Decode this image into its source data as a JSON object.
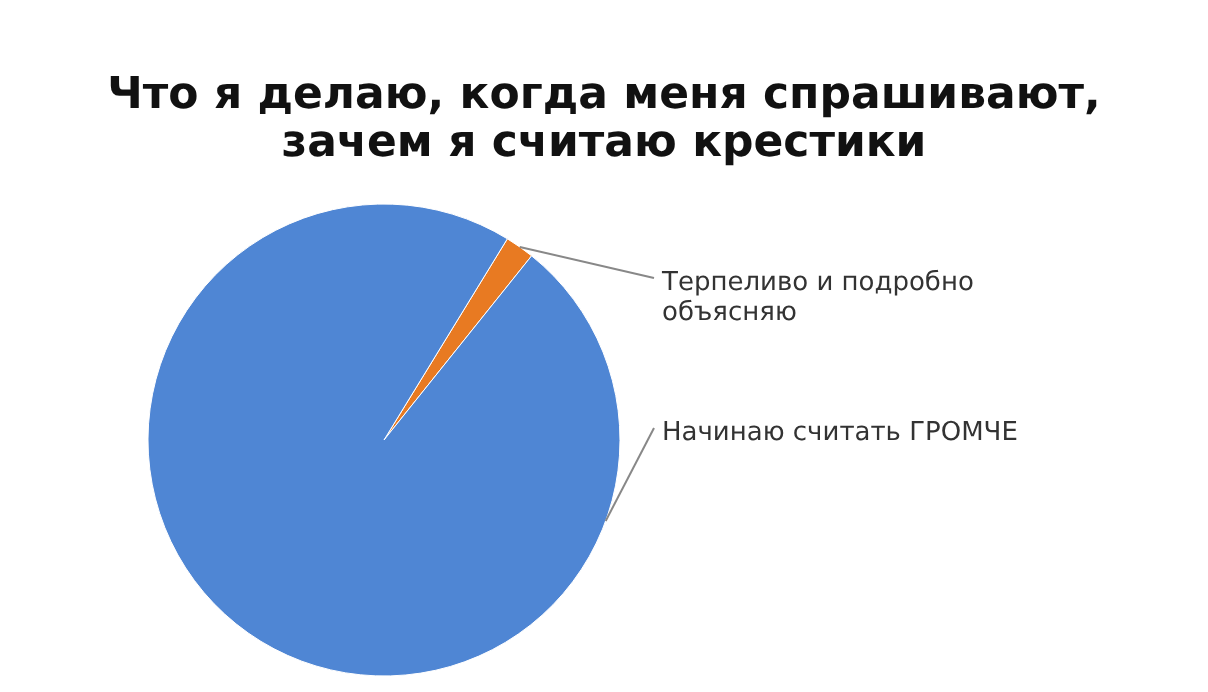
{
  "chart_data": {
    "type": "pie",
    "title": [
      "Что я делаю, когда меня спрашивают,",
      "зачем я считаю крестики"
    ],
    "categories": [
      "Терпеливо и подробно объясняю",
      "Начинаю считать ГРОМЧЕ"
    ],
    "values": [
      2,
      98
    ],
    "colors": [
      "#e87a22",
      "#4f86d4"
    ]
  }
}
